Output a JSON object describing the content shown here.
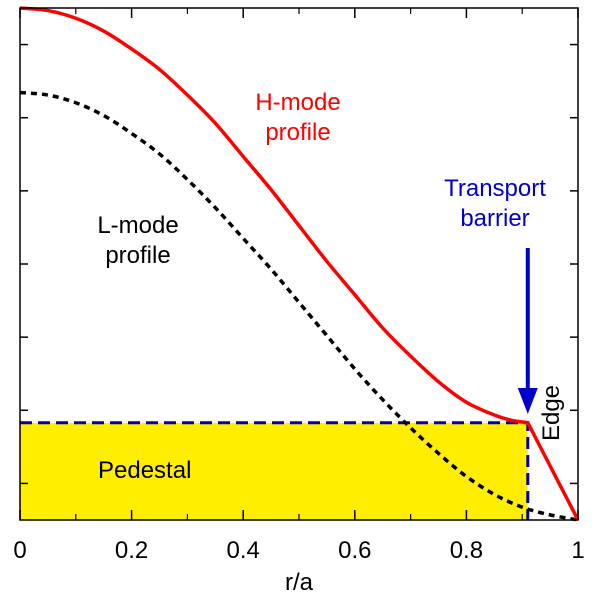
{
  "chart_data": {
    "type": "line",
    "xlabel": "r/a",
    "ylabel": "",
    "xlim": [
      0,
      1
    ],
    "ylim": [
      0,
      1
    ],
    "x_ticks": [
      0,
      0.2,
      0.4,
      0.6,
      0.8,
      1
    ],
    "x_tick_labels": [
      "0",
      "0.2",
      "0.4",
      "0.6",
      "0.8",
      "1"
    ],
    "y_tick_count": 7,
    "y_tick_labels": [],
    "grid": false,
    "series": [
      {
        "name": "H-mode profile",
        "color": "#ff0000",
        "style": "solid",
        "x": [
          0,
          0.05,
          0.1,
          0.15,
          0.2,
          0.25,
          0.3,
          0.35,
          0.4,
          0.45,
          0.5,
          0.55,
          0.6,
          0.65,
          0.7,
          0.75,
          0.8,
          0.85,
          0.88,
          0.91,
          0.95,
          1.0
        ],
        "y": [
          1.0,
          0.995,
          0.98,
          0.955,
          0.92,
          0.88,
          0.83,
          0.775,
          0.71,
          0.645,
          0.575,
          0.505,
          0.44,
          0.375,
          0.32,
          0.27,
          0.23,
          0.205,
          0.195,
          0.19,
          0.1,
          0.0
        ]
      },
      {
        "name": "L-mode profile",
        "color": "#000000",
        "style": "dashed",
        "x": [
          0,
          0.05,
          0.1,
          0.15,
          0.2,
          0.25,
          0.3,
          0.35,
          0.4,
          0.45,
          0.5,
          0.55,
          0.6,
          0.65,
          0.7,
          0.75,
          0.8,
          0.85,
          0.9,
          0.95,
          1.0
        ],
        "y": [
          0.835,
          0.83,
          0.815,
          0.79,
          0.755,
          0.715,
          0.665,
          0.61,
          0.55,
          0.49,
          0.425,
          0.36,
          0.295,
          0.235,
          0.18,
          0.13,
          0.085,
          0.05,
          0.025,
          0.01,
          0.0
        ]
      }
    ],
    "pedestal": {
      "label": "Pedestal",
      "x_end": 0.91,
      "height": 0.19,
      "fill": "#ffee00",
      "border_color": "#0000aa"
    },
    "annotations": {
      "h_mode_line1": "H-mode",
      "h_mode_line2": "profile",
      "l_mode_line1": "L-mode",
      "l_mode_line2": "profile",
      "barrier_line1": "Transport",
      "barrier_line2": "barrier",
      "edge": "Edge"
    },
    "colors": {
      "h_mode": "#ff0000",
      "l_mode": "#000000",
      "barrier": "#0000cc",
      "pedestal_fill": "#ffee00"
    }
  }
}
